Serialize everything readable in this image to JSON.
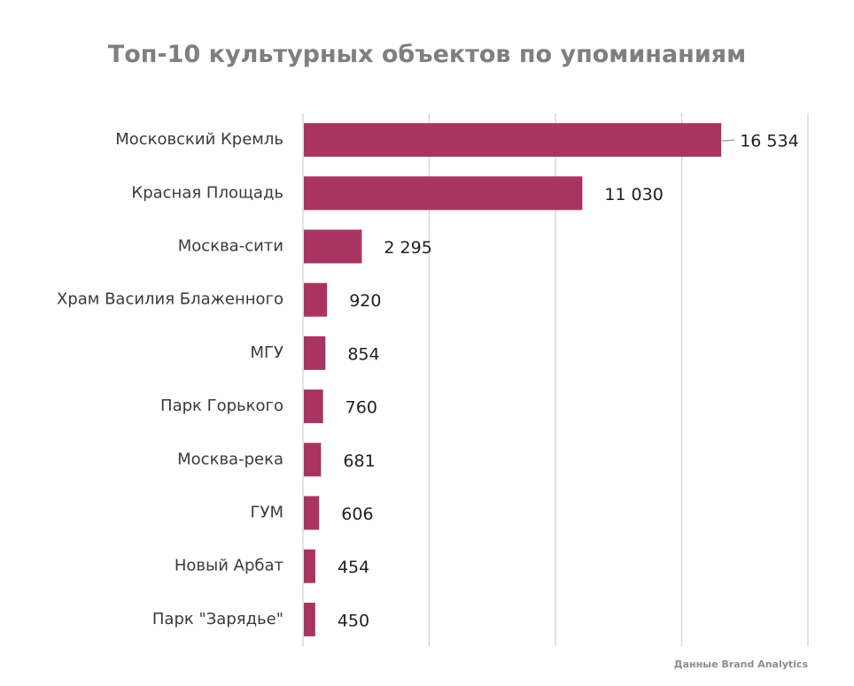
{
  "chart_data": {
    "type": "bar",
    "orientation": "horizontal",
    "title": "Топ-10 культурных объектов по упоминаниям",
    "categories": [
      "Московский Кремль",
      "Красная Площадь",
      "Москва-сити",
      "Храм Василия Блаженного",
      "МГУ",
      "Парк Горького",
      "Москва-река",
      "ГУМ",
      "Новый Арбат",
      "Парк \"Зарядье\""
    ],
    "values": [
      16534,
      11030,
      2295,
      920,
      854,
      760,
      681,
      606,
      454,
      450
    ],
    "value_labels": [
      "16 534",
      "11 030",
      "2 295",
      "920",
      "854",
      "760",
      "681",
      "606",
      "454",
      "450"
    ],
    "xlim": [
      0,
      20000
    ],
    "grid": true,
    "bar_color": "#a93461",
    "source": "Данные Brand Analytics"
  }
}
